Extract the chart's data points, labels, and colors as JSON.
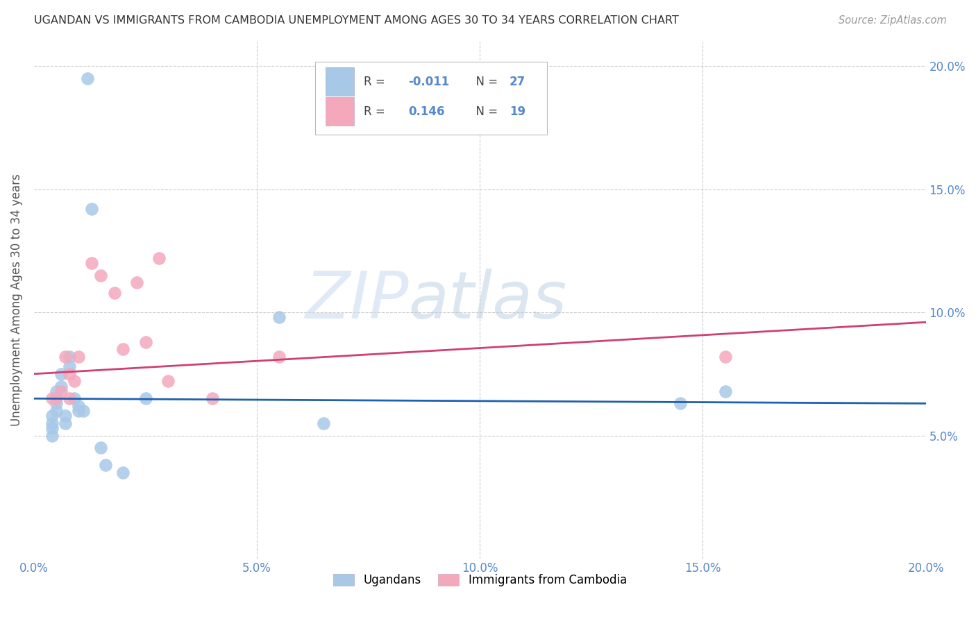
{
  "title": "UGANDAN VS IMMIGRANTS FROM CAMBODIA UNEMPLOYMENT AMONG AGES 30 TO 34 YEARS CORRELATION CHART",
  "source": "Source: ZipAtlas.com",
  "ylabel": "Unemployment Among Ages 30 to 34 years",
  "xlim": [
    0.0,
    0.2
  ],
  "ylim": [
    0.0,
    0.21
  ],
  "xticks": [
    0.0,
    0.05,
    0.1,
    0.15,
    0.2
  ],
  "yticks": [
    0.0,
    0.05,
    0.1,
    0.15,
    0.2
  ],
  "xtick_labels": [
    "0.0%",
    "5.0%",
    "10.0%",
    "15.0%",
    "20.0%"
  ],
  "right_ytick_labels": [
    "",
    "5.0%",
    "10.0%",
    "15.0%",
    "20.0%"
  ],
  "ugandan_color": "#a8c8e8",
  "cambodia_color": "#f4a8bc",
  "ugandan_line_color": "#2060b0",
  "cambodia_line_color": "#d04070",
  "ugandan_x": [
    0.004,
    0.004,
    0.004,
    0.004,
    0.005,
    0.005,
    0.005,
    0.006,
    0.006,
    0.007,
    0.007,
    0.008,
    0.008,
    0.009,
    0.01,
    0.01,
    0.011,
    0.012,
    0.013,
    0.015,
    0.016,
    0.02,
    0.025,
    0.055,
    0.065,
    0.145,
    0.155
  ],
  "ugandan_y": [
    0.058,
    0.055,
    0.053,
    0.05,
    0.068,
    0.063,
    0.06,
    0.075,
    0.07,
    0.058,
    0.055,
    0.082,
    0.078,
    0.065,
    0.062,
    0.06,
    0.06,
    0.195,
    0.142,
    0.045,
    0.038,
    0.035,
    0.065,
    0.098,
    0.055,
    0.063,
    0.068
  ],
  "cambodia_x": [
    0.004,
    0.005,
    0.006,
    0.007,
    0.008,
    0.008,
    0.009,
    0.01,
    0.013,
    0.015,
    0.018,
    0.02,
    0.023,
    0.025,
    0.028,
    0.03,
    0.04,
    0.055,
    0.155
  ],
  "cambodia_y": [
    0.065,
    0.065,
    0.068,
    0.082,
    0.075,
    0.065,
    0.072,
    0.082,
    0.12,
    0.115,
    0.108,
    0.085,
    0.112,
    0.088,
    0.122,
    0.072,
    0.065,
    0.082,
    0.082
  ],
  "ugandan_line_x": [
    0.0,
    0.2
  ],
  "ugandan_line_y": [
    0.065,
    0.063
  ],
  "cambodia_line_x": [
    0.0,
    0.2
  ],
  "cambodia_line_y": [
    0.075,
    0.096
  ],
  "watermark_zip": "ZIP",
  "watermark_atlas": "atlas",
  "background_color": "#ffffff",
  "grid_color": "#cccccc",
  "legend_R_ug": "-0.011",
  "legend_N_ug": "27",
  "legend_R_cam": "0.146",
  "legend_N_cam": "19"
}
